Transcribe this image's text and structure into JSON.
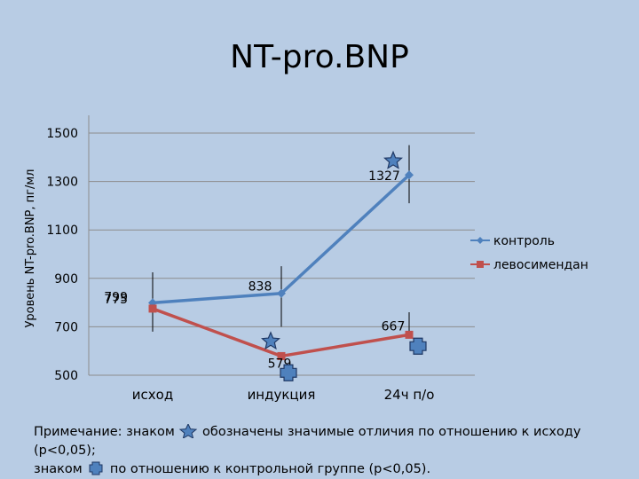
{
  "chart_data": {
    "type": "line",
    "title": "NT-pro.BNP",
    "ylabel": "Уровень NT-pro.BNP, пг/мл",
    "xlabel": "",
    "categories": [
      "исход",
      "индукция",
      "24ч п/о"
    ],
    "ylim": [
      500,
      1500
    ],
    "yticks": [
      500,
      700,
      900,
      1100,
      1300,
      1500
    ],
    "grid": "horizontal",
    "legend_position": "right",
    "series": [
      {
        "name": "контроль",
        "values": [
          799,
          838,
          1327
        ],
        "labels": [
          "799",
          "838",
          "1327"
        ],
        "color": "#4f81bd",
        "marker": "diamond",
        "error_low": [
          680,
          700,
          1210
        ],
        "error_high": [
          925,
          950,
          1450
        ]
      },
      {
        "name": "левосимендан",
        "values": [
          775,
          579,
          667
        ],
        "labels": [
          "775",
          "579",
          "667"
        ],
        "color": "#c0504d",
        "marker": "square",
        "error_low": null,
        "error_high": [
          null,
          null,
          760
        ]
      }
    ],
    "annotations": [
      {
        "symbol": "star-icon",
        "category": "индукция",
        "value": 640,
        "meaning": "significant vs baseline"
      },
      {
        "symbol": "star-icon",
        "category": "24ч п/о",
        "value": 1385,
        "meaning": "significant vs baseline"
      },
      {
        "symbol": "plus-square-icon",
        "category": "индукция",
        "value": 510,
        "meaning": "significant vs control"
      },
      {
        "symbol": "plus-square-icon",
        "category": "24ч п/о",
        "value": 620,
        "meaning": "significant vs control"
      }
    ],
    "colors": {
      "background": "#b8cce4",
      "grid": "#8c8c8c",
      "star_fill": "#4f81bd",
      "star_stroke": "#1f3864",
      "plus_fill": "#4f81bd",
      "plus_stroke": "#1f3864"
    }
  },
  "note": {
    "line1_before": "Примечание: знаком",
    "line1_after": "обозначены значимые отличия  по отношению к исходу (p<0,05);",
    "line2_before": "знаком",
    "line2_after": "по отношению к контрольной группе (p<0,05)."
  }
}
